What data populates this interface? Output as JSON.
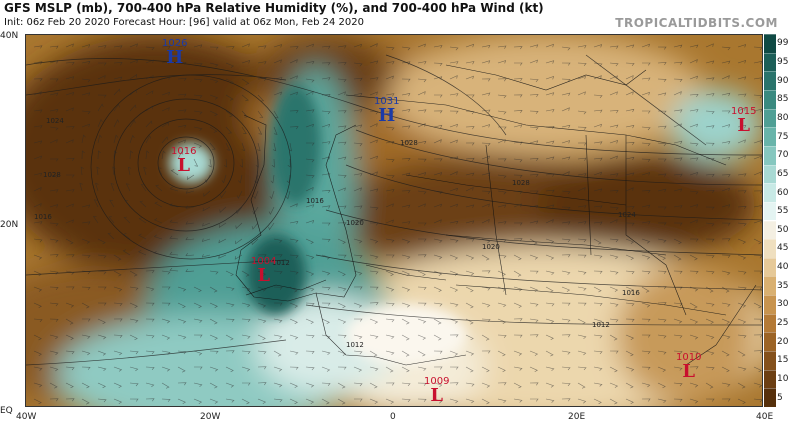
{
  "header": {
    "title": "GFS MSLP (mb), 700-400 hPa Relative Humidity (%), and 700-400 hPa Wind (kt)",
    "subtitle": "Init: 06z Feb 20 2020   Forecast Hour: [96]   valid at 06z Mon, Feb 24 2020",
    "brand": "TROPICALTIDBITS.COM"
  },
  "axes": {
    "lat_labels": [
      "40N",
      "20N",
      "EQ"
    ],
    "lon_labels": [
      "40W",
      "20W",
      "0",
      "20E",
      "40E"
    ]
  },
  "colorbar": {
    "levels": [
      "99",
      "95",
      "90",
      "85",
      "80",
      "75",
      "70",
      "65",
      "60",
      "55",
      "50",
      "45",
      "40",
      "35",
      "30",
      "25",
      "20",
      "15",
      "10",
      "5"
    ],
    "colors": [
      "#0f4a44",
      "#1c5f58",
      "#2a746c",
      "#3a8a80",
      "#4f9f95",
      "#68b4aa",
      "#86c7bf",
      "#a8d9d3",
      "#c8e9e5",
      "#e4f4f2",
      "#f4efe2",
      "#efdfbf",
      "#e6c998",
      "#d9b071",
      "#c8944f",
      "#b47a36",
      "#9c6426",
      "#84501b",
      "#6c3f13",
      "#56300c"
    ]
  },
  "pressure_systems": [
    {
      "type": "H",
      "value": "1026",
      "kind": "high"
    },
    {
      "type": "L",
      "value": "1016",
      "kind": "low"
    },
    {
      "type": "H",
      "value": "1031",
      "kind": "high"
    },
    {
      "type": "L",
      "value": "1015",
      "kind": "low"
    },
    {
      "type": "L",
      "value": "1004",
      "kind": "low"
    },
    {
      "type": "L",
      "value": "1009",
      "kind": "low"
    },
    {
      "type": "L",
      "value": "1010",
      "kind": "low"
    }
  ],
  "isobar_labels": [
    "1024",
    "1028",
    "1016",
    "1020",
    "1016",
    "1012",
    "1012",
    "1028",
    "1024",
    "1020",
    "1016",
    "1012",
    "1028"
  ]
}
